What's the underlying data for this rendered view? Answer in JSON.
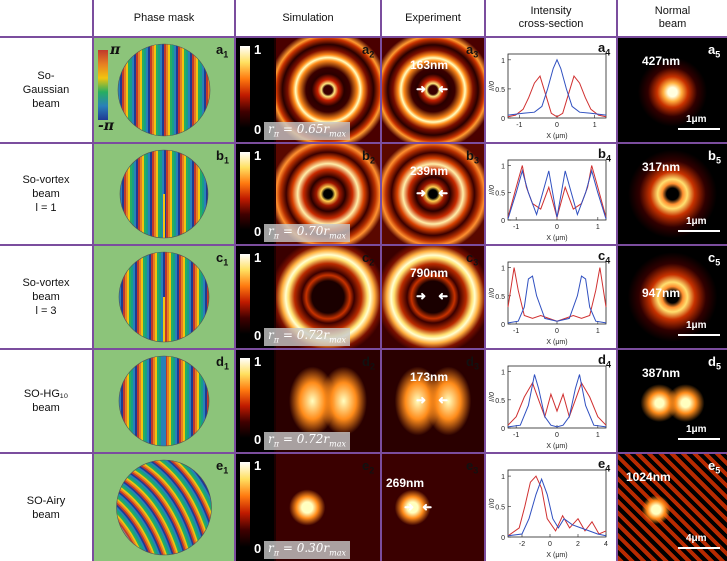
{
  "columns": [
    "Phase mask",
    "Simulation",
    "Experiment",
    "Intensity\ncross-section",
    "Normal\nbeam"
  ],
  "rows": [
    {
      "label": "So-\nGaussian\nbeam",
      "letter": "a",
      "r_value": "r",
      "r_text": "= 0.65r",
      "r_sub": "max",
      "exp_nm": "163nm",
      "normal_nm": "427nm",
      "scale": "1μm"
    },
    {
      "label": "So-vortex\nbeam\nl = 1",
      "letter": "b",
      "r_text": "= 0.70r",
      "r_sub": "max",
      "exp_nm": "239nm",
      "normal_nm": "317nm",
      "scale": "1μm"
    },
    {
      "label": "So-vortex\nbeam\nl = 3",
      "letter": "c",
      "r_text": "= 0.72r",
      "r_sub": "max",
      "exp_nm": "790nm",
      "normal_nm": "947nm",
      "scale": "1μm"
    },
    {
      "label": "SO-HG₁₀\nbeam",
      "letter": "d",
      "r_text": "= 0.72r",
      "r_sub": "max",
      "exp_nm": "173nm",
      "normal_nm": "387nm",
      "scale": "1μm"
    },
    {
      "label": "SO-Airy\nbeam",
      "letter": "e",
      "r_text": "= 0.30r",
      "r_sub": "max",
      "exp_nm": "269nm",
      "normal_nm": "1024nm",
      "scale": "4μm"
    }
  ],
  "colorbar": {
    "top": "1",
    "bottom": "0",
    "phase_top": "π",
    "phase_bottom": "-π"
  },
  "axis": {
    "ylabel": "I/I0",
    "xlabel": "X (μm)"
  },
  "chart_data": [
    {
      "type": "line",
      "panel": "a4",
      "xlim": [
        -1.3,
        1.3
      ],
      "ylim": [
        0,
        1.1
      ],
      "xticks": [
        -1,
        0,
        1
      ],
      "yticks": [
        0,
        0.5,
        1
      ],
      "series": [
        {
          "color": "#d03030",
          "x": [
            -1.3,
            -1.1,
            -0.9,
            -0.75,
            -0.6,
            -0.45,
            -0.3,
            -0.15,
            0,
            0.15,
            0.3,
            0.45,
            0.6,
            0.75,
            0.9,
            1.1,
            1.3
          ],
          "y": [
            0.02,
            0.05,
            0.15,
            0.35,
            0.6,
            0.72,
            0.4,
            0.08,
            0.02,
            0.08,
            0.4,
            0.72,
            0.6,
            0.35,
            0.15,
            0.05,
            0.02
          ]
        },
        {
          "color": "#3050c0",
          "x": [
            -1.3,
            -0.9,
            -0.6,
            -0.4,
            -0.25,
            -0.1,
            0,
            0.1,
            0.25,
            0.4,
            0.6,
            0.9,
            1.3
          ],
          "y": [
            0.05,
            0.08,
            0.1,
            0.2,
            0.5,
            0.85,
            1.0,
            0.85,
            0.5,
            0.2,
            0.1,
            0.08,
            0.05
          ]
        }
      ]
    },
    {
      "type": "line",
      "panel": "b4",
      "xlim": [
        -1.2,
        1.2
      ],
      "ylim": [
        0,
        1.1
      ],
      "xticks": [
        -1,
        0,
        1
      ],
      "yticks": [
        0,
        0.5,
        1
      ],
      "series": [
        {
          "color": "#d03030",
          "x": [
            -1.2,
            -1.0,
            -0.85,
            -0.75,
            -0.6,
            -0.4,
            -0.2,
            0,
            0.2,
            0.4,
            0.6,
            0.75,
            0.85,
            1.0,
            1.2
          ],
          "y": [
            0.05,
            0.6,
            1.0,
            0.6,
            0.3,
            0.2,
            0.6,
            0.05,
            0.6,
            0.2,
            0.3,
            0.6,
            1.0,
            0.6,
            0.05
          ]
        },
        {
          "color": "#3050c0",
          "x": [
            -1.2,
            -1.0,
            -0.85,
            -0.7,
            -0.5,
            -0.35,
            -0.2,
            0,
            0.2,
            0.35,
            0.5,
            0.7,
            0.85,
            1.0,
            1.2
          ],
          "y": [
            0.02,
            0.5,
            0.9,
            0.5,
            0.1,
            0.5,
            0.9,
            0.05,
            0.9,
            0.5,
            0.1,
            0.5,
            0.9,
            0.5,
            0.02
          ]
        }
      ]
    },
    {
      "type": "line",
      "panel": "c4",
      "xlim": [
        -1.2,
        1.2
      ],
      "ylim": [
        0,
        1.1
      ],
      "xticks": [
        -1,
        0,
        1
      ],
      "yticks": [
        0,
        0.5,
        1
      ],
      "series": [
        {
          "color": "#d03030",
          "x": [
            -1.2,
            -1.05,
            -0.95,
            -0.8,
            -0.6,
            -0.4,
            -0.2,
            0,
            0.2,
            0.4,
            0.6,
            0.8,
            0.95,
            1.05,
            1.2
          ],
          "y": [
            0.3,
            1.0,
            0.6,
            0.15,
            0.1,
            0.15,
            0.1,
            0.05,
            0.1,
            0.15,
            0.1,
            0.15,
            0.6,
            1.0,
            0.3
          ]
        },
        {
          "color": "#3050c0",
          "x": [
            -1.2,
            -0.95,
            -0.8,
            -0.7,
            -0.6,
            -0.5,
            -0.3,
            0,
            0.3,
            0.5,
            0.6,
            0.7,
            0.8,
            0.95,
            1.2
          ],
          "y": [
            0.02,
            0.05,
            0.3,
            0.8,
            0.85,
            0.5,
            0.1,
            0.05,
            0.1,
            0.5,
            0.85,
            0.8,
            0.3,
            0.05,
            0.02
          ]
        }
      ]
    },
    {
      "type": "line",
      "panel": "d4",
      "xlim": [
        -1.2,
        1.2
      ],
      "ylim": [
        0,
        1.1
      ],
      "xticks": [
        -1,
        0,
        1
      ],
      "yticks": [
        0,
        0.5,
        1
      ],
      "series": [
        {
          "color": "#d03030",
          "x": [
            -1.2,
            -1.0,
            -0.8,
            -0.6,
            -0.45,
            -0.3,
            -0.15,
            0,
            0.15,
            0.3,
            0.45,
            0.6,
            0.8,
            1.0,
            1.2
          ],
          "y": [
            0.05,
            0.2,
            0.55,
            0.8,
            0.5,
            0.2,
            0.6,
            0.3,
            0.6,
            0.2,
            0.5,
            0.8,
            0.55,
            0.2,
            0.05
          ]
        },
        {
          "color": "#3050c0",
          "x": [
            -1.2,
            -0.9,
            -0.7,
            -0.55,
            -0.45,
            -0.3,
            -0.15,
            0,
            0.15,
            0.3,
            0.45,
            0.55,
            0.7,
            0.9,
            1.2
          ],
          "y": [
            0.02,
            0.05,
            0.4,
            0.95,
            0.7,
            0.2,
            0.05,
            0.02,
            0.05,
            0.2,
            0.7,
            0.95,
            0.4,
            0.05,
            0.02
          ]
        }
      ]
    },
    {
      "type": "line",
      "panel": "e4",
      "xlim": [
        -3,
        4
      ],
      "ylim": [
        0,
        1.1
      ],
      "xticks": [
        -2,
        0,
        2,
        4
      ],
      "yticks": [
        0,
        0.5,
        1
      ],
      "series": [
        {
          "color": "#d03030",
          "x": [
            -3,
            -2.2,
            -1.8,
            -1.4,
            -1.0,
            -0.6,
            -0.2,
            0.4,
            0.9,
            1.4,
            2.0,
            2.5,
            3.0,
            3.5,
            4
          ],
          "y": [
            0.02,
            0.15,
            0.5,
            0.9,
            1.0,
            0.8,
            0.3,
            0.1,
            0.35,
            0.15,
            0.3,
            0.1,
            0.25,
            0.05,
            0.1
          ]
        },
        {
          "color": "#3050c0",
          "x": [
            -3,
            -2.0,
            -1.5,
            -1.0,
            -0.6,
            -0.2,
            0.2,
            0.6,
            1.0,
            1.6,
            2.2,
            2.8,
            3.4,
            4
          ],
          "y": [
            0.02,
            0.05,
            0.3,
            0.7,
            0.95,
            0.7,
            0.3,
            0.15,
            0.3,
            0.2,
            0.15,
            0.1,
            0.05,
            0.02
          ]
        }
      ]
    }
  ]
}
